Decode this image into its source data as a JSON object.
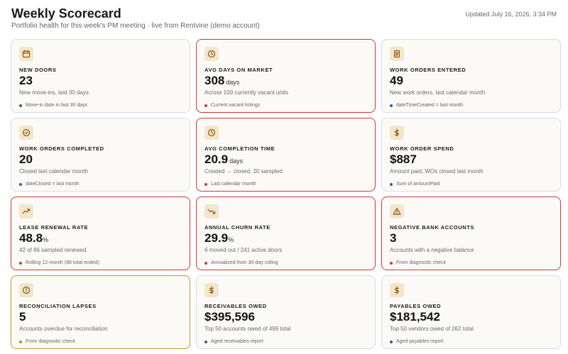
{
  "header": {
    "title": "Weekly Scorecard",
    "subtitle": "Portfolio health for this week's PM meeting · live from Rentvine (demo account)",
    "updated": "Updated July 16, 2026, 3:34 PM"
  },
  "colors": {
    "neutral_border": "#d6dbe6",
    "alert_border": "#cc3a3a",
    "warning_border": "#c8952e",
    "dot_blue": "#2f5f9e",
    "dot_red": "#cc3a3a",
    "dot_amber": "#b98a2a",
    "icon_bg": "#f3e6cc"
  },
  "cards": [
    {
      "label": "NEW DOORS",
      "value": "23",
      "unit": "",
      "desc": "New move-ins, last 30 days",
      "foot": "Move-in date in last 30 days",
      "icon": "calendar-icon",
      "status": "neutral"
    },
    {
      "label": "AVG DAYS ON MARKET",
      "value": "308",
      "unit": "days",
      "desc": "Across 100 currently vacant units",
      "foot": "Current vacant listings",
      "icon": "clock-icon",
      "status": "alert"
    },
    {
      "label": "WORK ORDERS ENTERED",
      "value": "49",
      "unit": "",
      "desc": "New work orders, last calendar month",
      "foot": "dateTimeCreated = last month",
      "icon": "clipboard-icon",
      "status": "neutral"
    },
    {
      "label": "WORK ORDERS COMPLETED",
      "value": "20",
      "unit": "",
      "desc": "Closed last calendar month",
      "foot": "dateClosed = last month",
      "icon": "check-circle-icon",
      "status": "neutral"
    },
    {
      "label": "AVG COMPLETION TIME",
      "value": "20.9",
      "unit": "days",
      "desc": "Created → closed, 20 sampled",
      "foot": "Last calendar month",
      "icon": "clock-icon",
      "status": "alert"
    },
    {
      "label": "WORK ORDER SPEND",
      "value": "$887",
      "unit": "",
      "desc": "Amount paid, WOs closed last month",
      "foot": "Sum of amountPaid",
      "icon": "dollar-icon",
      "status": "neutral"
    },
    {
      "label": "LEASE RENEWAL RATE",
      "value": "48.8",
      "unit": "%",
      "desc": "42 of 86 sampled renewed",
      "foot": "Rolling 12-month (86 total ended)",
      "icon": "trending-up-icon",
      "status": "alert"
    },
    {
      "label": "ANNUAL CHURN RATE",
      "value": "29.9",
      "unit": "%",
      "desc": "6 moved out / 241 active doors",
      "foot": "Annualized from 30-day rolling",
      "icon": "trending-down-icon",
      "status": "alert"
    },
    {
      "label": "NEGATIVE BANK ACCOUNTS",
      "value": "3",
      "unit": "",
      "desc": "Accounts with a negative balance",
      "foot": "From diagnostic check",
      "icon": "warning-triangle-icon",
      "status": "alert"
    },
    {
      "label": "RECONCILIATION LAPSES",
      "value": "5",
      "unit": "",
      "desc": "Accounts overdue for reconciliation",
      "foot": "From diagnostic check",
      "icon": "alert-circle-icon",
      "status": "warning"
    },
    {
      "label": "RECEIVABLES OWED",
      "value": "$395,596",
      "unit": "",
      "desc": "Top 50 accounts owed of 499 total",
      "foot": "Aged receivables report",
      "icon": "dollar-icon",
      "status": "neutral"
    },
    {
      "label": "PAYABLES OWED",
      "value": "$181,542",
      "unit": "",
      "desc": "Top 50 vendors owed of 262 total",
      "foot": "Aged payables report",
      "icon": "dollar-icon",
      "status": "neutral"
    }
  ]
}
